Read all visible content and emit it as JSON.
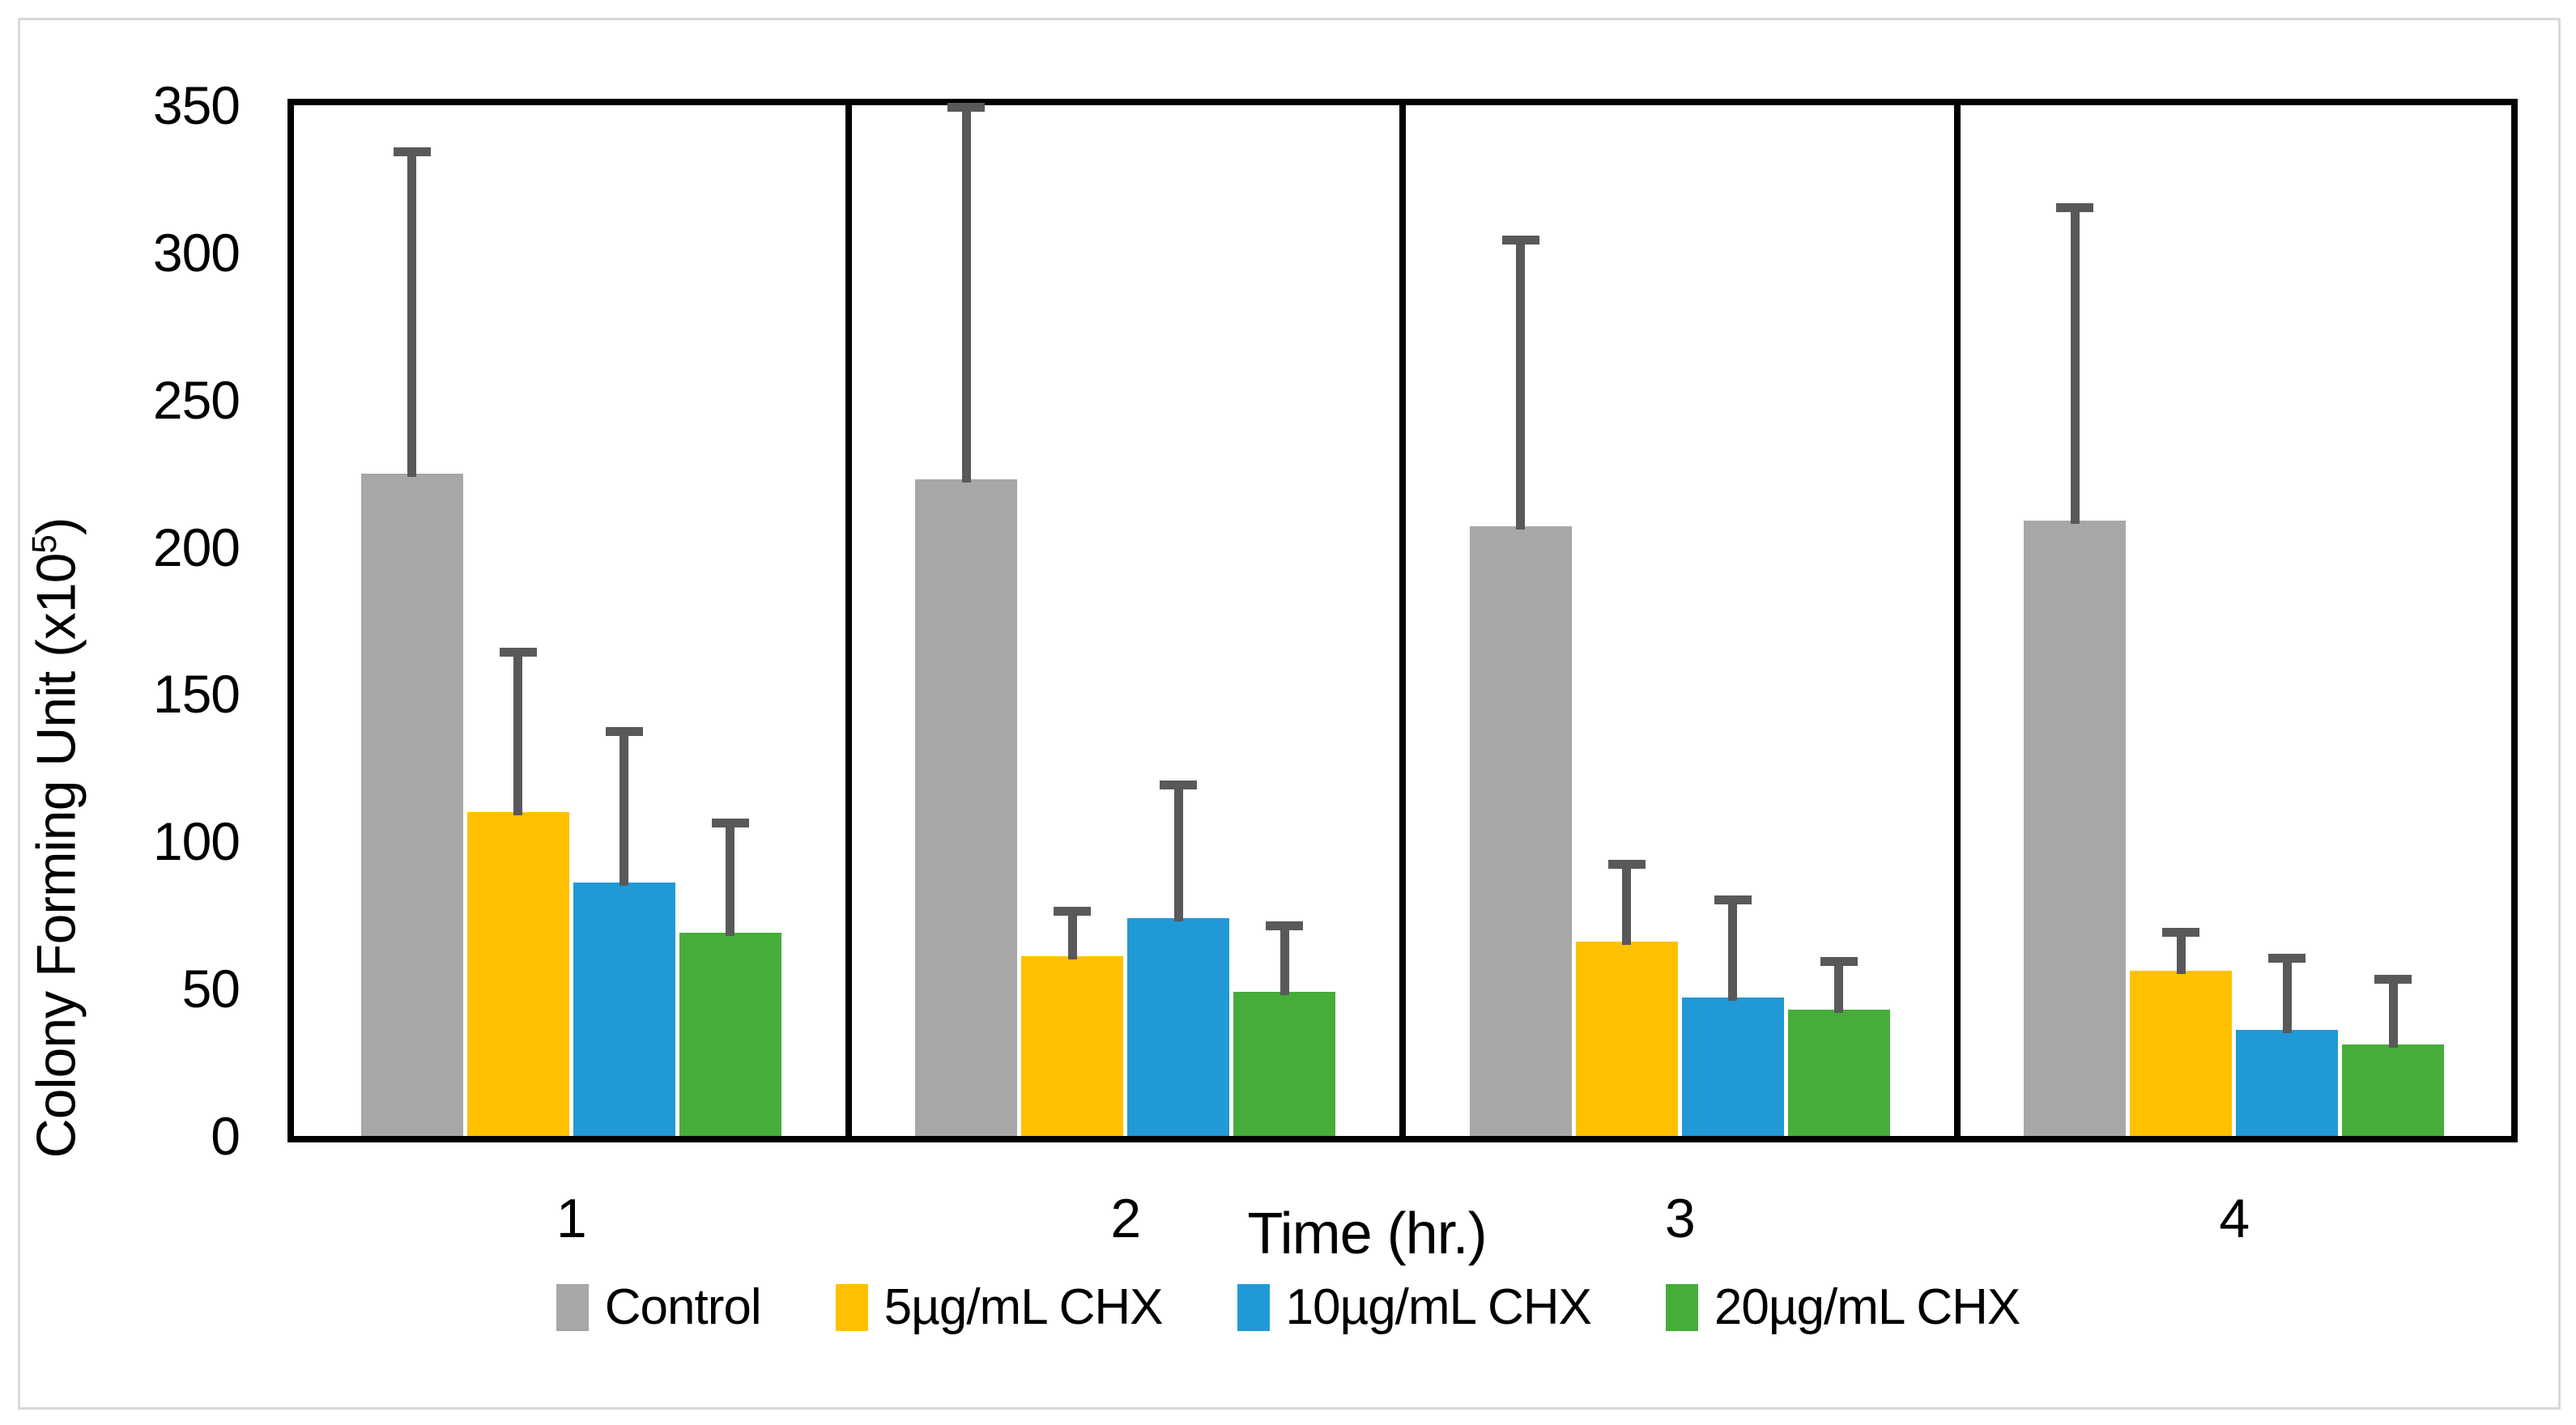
{
  "chart_data": {
    "type": "bar",
    "title": "",
    "xlabel": "Time (hr.)",
    "ylabel": "Colony Forming Unit (x10⁵)",
    "ylabel_prefix": "Colony Forming Unit (x10",
    "ylabel_sup": "5",
    "ylabel_suffix": ")",
    "categories": [
      "1",
      "2",
      "3",
      "4"
    ],
    "yticks": [
      0,
      50,
      100,
      150,
      200,
      250,
      300,
      350
    ],
    "ylim": [
      0,
      350
    ],
    "grid": false,
    "panel_dividers": true,
    "legend_position": "bottom",
    "error_bars": "plus_sd",
    "series": [
      {
        "name": "Control",
        "color": "#a7a7a7",
        "values": [
          225,
          223,
          207,
          209
        ],
        "errors": [
          108,
          125,
          96,
          105
        ]
      },
      {
        "name": "5µg/mL CHX",
        "color": "#ffc000",
        "values": [
          110,
          61,
          66,
          56
        ],
        "errors": [
          53,
          14,
          25,
          12
        ]
      },
      {
        "name": "10µg/mL CHX",
        "color": "#2199d6",
        "values": [
          86,
          74,
          47,
          36
        ],
        "errors": [
          50,
          44,
          32,
          23
        ]
      },
      {
        "name": "20µg/mL CHX",
        "color": "#47ad3a",
        "values": [
          69,
          49,
          43,
          31
        ],
        "errors": [
          36,
          21,
          15,
          21
        ]
      }
    ],
    "colors": {
      "axis": "#000000",
      "error_bar": "#595959",
      "figure_border": "#d9d9d9",
      "background": "#ffffff"
    }
  }
}
